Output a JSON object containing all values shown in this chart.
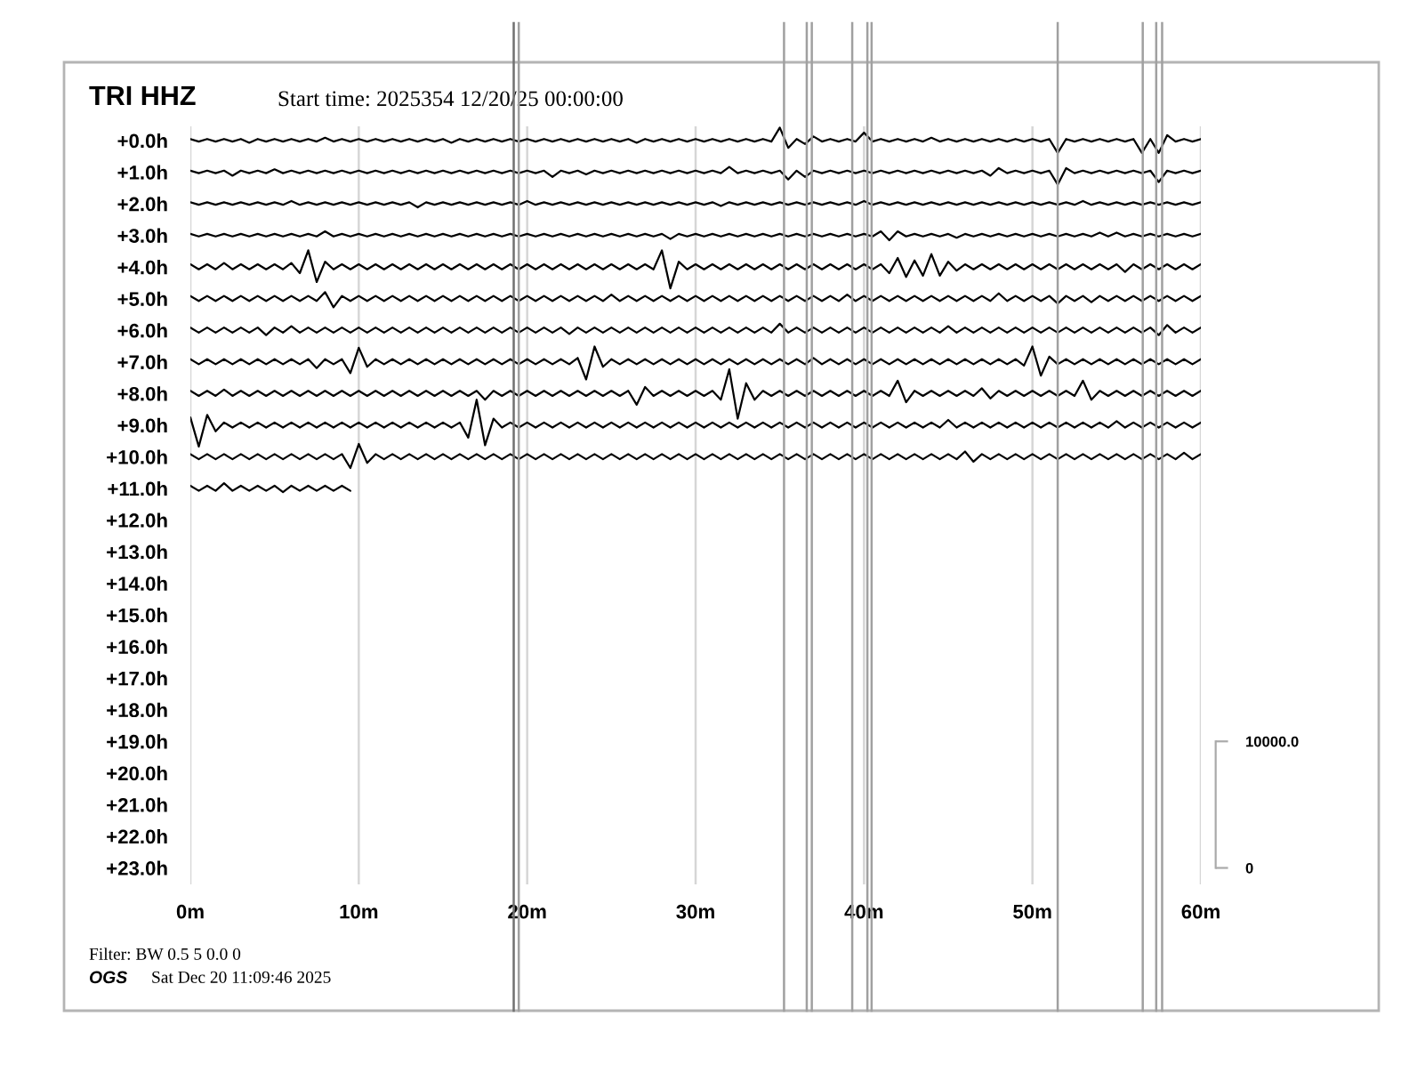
{
  "chart_data": {
    "type": "line",
    "title": "TRI HHZ",
    "subtitle": "Start time: 2025354 12/20/25 00:00:00",
    "annotations": [
      "Filter: BW 0.5 5 0.0 0",
      "OGS",
      "Sat Dec 20 11:09:46 2025"
    ],
    "xlim": [
      0,
      60
    ],
    "xticks": [
      {
        "value": 0,
        "label": "0m"
      },
      {
        "value": 10,
        "label": "10m"
      },
      {
        "value": 20,
        "label": "20m"
      },
      {
        "value": 30,
        "label": "30m"
      },
      {
        "value": 40,
        "label": "40m"
      },
      {
        "value": 50,
        "label": "50m"
      },
      {
        "value": 60,
        "label": "60m"
      }
    ],
    "ylim": [
      23.52,
      -0.45
    ],
    "yticks": [
      {
        "value": 0,
        "label": "+0.0h"
      },
      {
        "value": 1,
        "label": "+1.0h"
      },
      {
        "value": 2,
        "label": "+2.0h"
      },
      {
        "value": 3,
        "label": "+3.0h"
      },
      {
        "value": 4,
        "label": "+4.0h"
      },
      {
        "value": 5,
        "label": "+5.0h"
      },
      {
        "value": 6,
        "label": "+6.0h"
      },
      {
        "value": 7,
        "label": "+7.0h"
      },
      {
        "value": 8,
        "label": "+8.0h"
      },
      {
        "value": 9,
        "label": "+9.0h"
      },
      {
        "value": 10,
        "label": "+10.0h"
      },
      {
        "value": 11,
        "label": "+11.0h"
      },
      {
        "value": 12,
        "label": "+12.0h"
      },
      {
        "value": 13,
        "label": "+13.0h"
      },
      {
        "value": 14,
        "label": "+14.0h"
      },
      {
        "value": 15,
        "label": "+15.0h"
      },
      {
        "value": 16,
        "label": "+16.0h"
      },
      {
        "value": 17,
        "label": "+17.0h"
      },
      {
        "value": 18,
        "label": "+18.0h"
      },
      {
        "value": 19,
        "label": "+19.0h"
      },
      {
        "value": 20,
        "label": "+20.0h"
      },
      {
        "value": 21,
        "label": "+21.0h"
      },
      {
        "value": 22,
        "label": "+22.0h"
      },
      {
        "value": 23,
        "label": "+23.0h"
      }
    ],
    "y2lim": [
      -1300,
      58600
    ],
    "y2ticks": [
      0,
      {
        "value": 10000,
        "label": "10000.0"
      }
    ],
    "grid": "x",
    "ref_lines": [
      {
        "axis": "x",
        "value": 19.2,
        "color": "#707070"
      },
      {
        "axis": "x",
        "value": 19.5,
        "color": "#a0a0a0"
      },
      {
        "axis": "x",
        "value": 35.25,
        "color": "#a0a0a0"
      },
      {
        "axis": "x",
        "value": 36.6,
        "color": "#a0a0a0"
      },
      {
        "axis": "x",
        "value": 36.9,
        "color": "#a0a0a0"
      },
      {
        "axis": "x",
        "value": 39.3,
        "color": "#a0a0a0"
      },
      {
        "axis": "x",
        "value": 40.2,
        "color": "#a0a0a0"
      },
      {
        "axis": "x",
        "value": 40.45,
        "color": "#a0a0a0"
      },
      {
        "axis": "x",
        "value": 51.5,
        "color": "#a0a0a0"
      },
      {
        "axis": "x",
        "value": 56.55,
        "color": "#a0a0a0"
      },
      {
        "axis": "x",
        "value": 57.35,
        "color": "#a0a0a0"
      },
      {
        "axis": "x",
        "value": 57.7,
        "color": "#a0a0a0"
      }
    ],
    "x": [
      0,
      0.5,
      1,
      1.5,
      2,
      2.5,
      3,
      3.5,
      4,
      4.5,
      5,
      5.5,
      6,
      6.5,
      7,
      7.5,
      8,
      8.5,
      9,
      9.5,
      10,
      10.5,
      11,
      11.5,
      12,
      12.5,
      13,
      13.5,
      14,
      14.5,
      15,
      15.5,
      16,
      16.5,
      17,
      17.5,
      18,
      18.5,
      19,
      19.5,
      20,
      20.5,
      21,
      21.5,
      22,
      22.5,
      23,
      23.5,
      24,
      24.5,
      25,
      25.5,
      26,
      26.5,
      27,
      27.5,
      28,
      28.5,
      29,
      29.5,
      30,
      30.5,
      31,
      31.5,
      32,
      32.5,
      33,
      33.5,
      34,
      34.5,
      35,
      35.5,
      36,
      36.5,
      37,
      37.5,
      38,
      38.5,
      39,
      39.5,
      40,
      40.5,
      41,
      41.5,
      42,
      42.5,
      43,
      43.5,
      44,
      44.5,
      45,
      45.5,
      46,
      46.5,
      47,
      47.5,
      48,
      48.5,
      49,
      49.5,
      50,
      50.5,
      51,
      51.5,
      52,
      52.5,
      53,
      53.5,
      54,
      54.5,
      55,
      55.5,
      56,
      56.5,
      57,
      57.5,
      58,
      58.5,
      59,
      59.5,
      60
    ],
    "series": [
      {
        "color": "#000000",
        "axis": "y2",
        "values": [
          57600,
          57400,
          57600,
          57400,
          57600,
          57400,
          57600,
          57300,
          57600,
          57400,
          57600,
          57400,
          57600,
          57400,
          57600,
          57400,
          57700,
          57400,
          57600,
          57400,
          57600,
          57400,
          57600,
          57400,
          57600,
          57400,
          57600,
          57400,
          57600,
          57400,
          57600,
          57300,
          57600,
          57400,
          57600,
          57400,
          57600,
          57400,
          57600,
          57400,
          57600,
          57400,
          57600,
          57400,
          57600,
          57400,
          57600,
          57400,
          57600,
          57400,
          57600,
          57400,
          57600,
          57300,
          57600,
          57400,
          57600,
          57400,
          57600,
          57400,
          57600,
          57400,
          57600,
          57400,
          57600,
          57400,
          57600,
          57400,
          57600,
          57400,
          58500,
          56900,
          57600,
          57200,
          57800,
          57400,
          57600,
          57400,
          57600,
          57400,
          58100,
          57400,
          57600,
          57400,
          57600,
          57400,
          57600,
          57400,
          57700,
          57400,
          57600,
          57400,
          57600,
          57400,
          57600,
          57400,
          57600,
          57400,
          57600,
          57400,
          57600,
          57400,
          57600,
          56500,
          57600,
          57400,
          57600,
          57400,
          57600,
          57400,
          57600,
          57400,
          57600,
          56500,
          57600,
          56500,
          57900,
          57400,
          57600,
          57400,
          57600
        ]
      },
      {
        "color": "#000000",
        "axis": "y2",
        "values": [
          55100,
          54900,
          55100,
          54900,
          55100,
          54700,
          55100,
          54900,
          55100,
          54900,
          55200,
          54900,
          55100,
          54900,
          55100,
          54900,
          55100,
          54900,
          55100,
          54900,
          55100,
          54900,
          55100,
          54900,
          55100,
          54900,
          55100,
          54900,
          55100,
          54900,
          55100,
          54900,
          55100,
          54900,
          55100,
          54900,
          55100,
          54900,
          55100,
          54900,
          55100,
          54900,
          55100,
          54600,
          55100,
          54900,
          55100,
          54800,
          55100,
          54900,
          55100,
          54900,
          55100,
          54900,
          55100,
          54900,
          55100,
          54900,
          55100,
          54900,
          55100,
          54900,
          55100,
          54900,
          55400,
          54900,
          55100,
          54900,
          55100,
          54900,
          55100,
          54400,
          55100,
          54600,
          55100,
          54900,
          55100,
          54900,
          55100,
          54900,
          55100,
          54900,
          55100,
          54900,
          55100,
          54900,
          55100,
          54900,
          55100,
          54900,
          55100,
          54900,
          55100,
          54900,
          55100,
          54700,
          55300,
          54900,
          55100,
          54900,
          55100,
          54900,
          55100,
          54000,
          55300,
          54900,
          55100,
          54900,
          55100,
          54900,
          55100,
          54900,
          55100,
          54900,
          55100,
          54200,
          55100,
          54900,
          55100,
          54900,
          55100
        ]
      },
      {
        "color": "#000000",
        "axis": "y2",
        "values": [
          52600,
          52400,
          52600,
          52400,
          52600,
          52400,
          52600,
          52400,
          52600,
          52400,
          52600,
          52400,
          52700,
          52400,
          52600,
          52400,
          52600,
          52400,
          52600,
          52400,
          52600,
          52400,
          52600,
          52400,
          52600,
          52400,
          52600,
          52200,
          52600,
          52400,
          52600,
          52400,
          52600,
          52400,
          52600,
          52400,
          52600,
          52400,
          52600,
          52400,
          52700,
          52400,
          52600,
          52400,
          52600,
          52400,
          52600,
          52400,
          52600,
          52400,
          52600,
          52400,
          52600,
          52400,
          52600,
          52400,
          52600,
          52400,
          52600,
          52400,
          52600,
          52400,
          52600,
          52300,
          52600,
          52400,
          52600,
          52400,
          52600,
          52400,
          52600,
          52400,
          52600,
          52400,
          52600,
          52400,
          52600,
          52400,
          52600,
          52400,
          52700,
          52400,
          52600,
          52400,
          52600,
          52400,
          52600,
          52400,
          52600,
          52400,
          52600,
          52400,
          52600,
          52400,
          52600,
          52400,
          52600,
          52400,
          52600,
          52400,
          52600,
          52400,
          52600,
          52400,
          52600,
          52400,
          52700,
          52400,
          52600,
          52400,
          52600,
          52400,
          52600,
          52400,
          52600,
          52400,
          52600,
          52400,
          52600,
          52400,
          52600
        ]
      },
      {
        "color": "#000000",
        "axis": "y2",
        "values": [
          50100,
          49900,
          50100,
          49900,
          50100,
          49900,
          50100,
          49900,
          50100,
          49900,
          50100,
          49900,
          50100,
          49900,
          50100,
          49900,
          50300,
          49900,
          50100,
          49900,
          50100,
          49900,
          50100,
          49900,
          50100,
          49900,
          50100,
          49900,
          50100,
          49900,
          50100,
          49900,
          50100,
          49900,
          50100,
          49900,
          50100,
          49900,
          50100,
          49900,
          50100,
          49900,
          50100,
          49900,
          50100,
          49900,
          50100,
          49900,
          50100,
          49900,
          50100,
          49900,
          50100,
          49900,
          50100,
          49900,
          50100,
          49700,
          50100,
          49900,
          50100,
          49900,
          50100,
          49900,
          50100,
          49900,
          50100,
          49900,
          50100,
          49900,
          50100,
          49900,
          50100,
          49900,
          50100,
          49900,
          50100,
          49900,
          50100,
          49900,
          50100,
          49900,
          50300,
          49600,
          50300,
          49900,
          50100,
          49900,
          50100,
          49900,
          50100,
          49800,
          50100,
          49900,
          50100,
          49900,
          50100,
          49900,
          50100,
          49900,
          50100,
          49900,
          50100,
          49900,
          50100,
          49900,
          50100,
          49900,
          50200,
          49900,
          50200,
          49900,
          50100,
          49900,
          50100,
          49900,
          50100,
          49900,
          50100,
          49900,
          50100
        ]
      },
      {
        "color": "#000000",
        "axis": "y2",
        "values": [
          47700,
          47300,
          47700,
          47300,
          47800,
          47300,
          47700,
          47300,
          47700,
          47300,
          47700,
          47300,
          47800,
          47000,
          48800,
          46300,
          47900,
          47300,
          47700,
          47300,
          47700,
          47300,
          47700,
          47300,
          47700,
          47300,
          47700,
          47300,
          47700,
          47300,
          47700,
          47300,
          47700,
          47300,
          47700,
          47300,
          47700,
          47300,
          47700,
          47300,
          47700,
          47300,
          47700,
          47300,
          47700,
          47300,
          47700,
          47300,
          47700,
          47300,
          47700,
          47300,
          47700,
          47300,
          47700,
          47300,
          48800,
          45800,
          47900,
          47300,
          47700,
          47300,
          47700,
          47300,
          47700,
          47300,
          47700,
          47300,
          47700,
          47300,
          47700,
          47300,
          47700,
          47300,
          47700,
          47300,
          47700,
          47300,
          47700,
          47300,
          47700,
          47300,
          47700,
          47000,
          48200,
          46700,
          48000,
          46800,
          48500,
          46800,
          47900,
          47200,
          47700,
          47300,
          47700,
          47300,
          47700,
          47300,
          47700,
          47300,
          47700,
          47300,
          47700,
          47300,
          47700,
          47300,
          47700,
          47300,
          47700,
          47300,
          47700,
          47100,
          47700,
          47300,
          47700,
          47300,
          47700,
          47300,
          47700,
          47300,
          47700
        ]
      },
      {
        "color": "#000000",
        "axis": "y2",
        "values": [
          45200,
          44800,
          45200,
          44800,
          45200,
          44800,
          45200,
          44800,
          45200,
          44800,
          45200,
          44800,
          45200,
          44800,
          45200,
          44800,
          45500,
          44300,
          45200,
          44800,
          45200,
          44800,
          45200,
          44800,
          45200,
          44800,
          45200,
          44800,
          45200,
          44800,
          45200,
          44800,
          45200,
          44800,
          45200,
          44800,
          45200,
          44800,
          45200,
          44800,
          45200,
          44800,
          45200,
          44800,
          45200,
          44800,
          45200,
          44800,
          45200,
          44800,
          45300,
          44800,
          45200,
          44800,
          45200,
          44800,
          45200,
          44800,
          45200,
          44800,
          45200,
          44800,
          45200,
          44800,
          45200,
          44800,
          45200,
          44800,
          45200,
          44800,
          45200,
          44800,
          45200,
          44800,
          45200,
          44800,
          45200,
          44800,
          45300,
          44800,
          45200,
          44800,
          45200,
          44800,
          45200,
          44800,
          45200,
          44800,
          45200,
          44800,
          45200,
          44800,
          45200,
          44800,
          45200,
          44800,
          45400,
          44800,
          45200,
          44800,
          45200,
          44800,
          45200,
          44600,
          45200,
          44800,
          45200,
          44700,
          45200,
          44800,
          45200,
          44800,
          45200,
          44800,
          45200,
          44800,
          45200,
          44800,
          45200,
          44800,
          45200
        ]
      },
      {
        "color": "#000000",
        "axis": "y2",
        "values": [
          42700,
          42300,
          42700,
          42300,
          42700,
          42300,
          42700,
          42300,
          42700,
          42100,
          42700,
          42300,
          42800,
          42300,
          42700,
          42300,
          42700,
          42300,
          42700,
          42300,
          42700,
          42300,
          42700,
          42300,
          42700,
          42300,
          42700,
          42300,
          42700,
          42300,
          42700,
          42300,
          42700,
          42300,
          42700,
          42300,
          42700,
          42300,
          42700,
          42300,
          42700,
          42300,
          42700,
          42300,
          42700,
          42200,
          42700,
          42300,
          42700,
          42300,
          42700,
          42300,
          42700,
          42300,
          42700,
          42300,
          42700,
          42300,
          42700,
          42300,
          42700,
          42300,
          42700,
          42300,
          42700,
          42300,
          42700,
          42300,
          42700,
          42300,
          43000,
          42300,
          42700,
          42300,
          42700,
          42300,
          42700,
          42300,
          42700,
          42300,
          42700,
          42300,
          42700,
          42300,
          42700,
          42300,
          42700,
          42300,
          42700,
          42300,
          42800,
          42300,
          42700,
          42300,
          42700,
          42300,
          42700,
          42300,
          42700,
          42300,
          42700,
          42300,
          42700,
          42300,
          42700,
          42300,
          42700,
          42300,
          42700,
          42300,
          42700,
          42300,
          42700,
          42300,
          42700,
          42100,
          42900,
          42300,
          42700,
          42300,
          42700
        ]
      },
      {
        "color": "#000000",
        "axis": "y2",
        "values": [
          40200,
          39800,
          40200,
          39800,
          40200,
          39800,
          40200,
          39800,
          40200,
          39800,
          40200,
          39800,
          40200,
          39800,
          40200,
          39500,
          40200,
          39800,
          40200,
          39100,
          41100,
          39600,
          40200,
          39800,
          40200,
          39800,
          40200,
          39800,
          40200,
          39800,
          40200,
          39800,
          40200,
          39800,
          40200,
          39800,
          40200,
          39800,
          40200,
          39800,
          40200,
          39800,
          40200,
          39800,
          40200,
          39800,
          40300,
          38600,
          41200,
          39600,
          40200,
          39800,
          40200,
          39800,
          40200,
          39800,
          40200,
          39800,
          40200,
          39800,
          40200,
          39800,
          40200,
          39800,
          40200,
          39800,
          40200,
          39800,
          40200,
          39800,
          40200,
          39800,
          40200,
          39800,
          40300,
          39800,
          40200,
          39800,
          40200,
          39800,
          40200,
          39800,
          40200,
          39800,
          40200,
          39800,
          40200,
          39800,
          40200,
          39800,
          40200,
          39800,
          40200,
          39800,
          40200,
          39800,
          40200,
          39800,
          40200,
          39700,
          41200,
          38900,
          40400,
          39800,
          40200,
          39800,
          40200,
          39800,
          40200,
          39800,
          40200,
          39800,
          40200,
          39800,
          40200,
          39800,
          40200,
          39800,
          40200,
          39800,
          40200
        ]
      },
      {
        "color": "#000000",
        "axis": "y2",
        "values": [
          37700,
          37300,
          37700,
          37300,
          37800,
          37300,
          37700,
          37300,
          37700,
          37300,
          37700,
          37300,
          37700,
          37300,
          37700,
          37300,
          37700,
          37300,
          37700,
          37300,
          37700,
          37300,
          37700,
          37300,
          37700,
          37300,
          37700,
          37300,
          37700,
          37300,
          37700,
          37300,
          37700,
          37300,
          37700,
          37000,
          37700,
          37300,
          37700,
          37300,
          37700,
          37300,
          37700,
          37300,
          37700,
          37300,
          37700,
          37300,
          37700,
          37300,
          37700,
          37300,
          37700,
          36600,
          38000,
          37300,
          37700,
          37300,
          37700,
          37300,
          37700,
          37300,
          37700,
          37000,
          39400,
          35500,
          38300,
          37000,
          37700,
          37300,
          37700,
          37300,
          37700,
          37300,
          37700,
          37300,
          37700,
          37300,
          37700,
          37300,
          37700,
          37300,
          37700,
          37300,
          38500,
          36800,
          37700,
          37300,
          37700,
          37300,
          37700,
          37300,
          37700,
          37300,
          37900,
          37100,
          37700,
          37300,
          37700,
          37300,
          37700,
          37300,
          37700,
          37300,
          37700,
          37300,
          38500,
          37000,
          37700,
          37300,
          37700,
          37300,
          37700,
          37300,
          37700,
          37300,
          37700,
          37300,
          37700,
          37300,
          37700
        ]
      },
      {
        "color": "#000000",
        "axis": "y2",
        "values": [
          35600,
          33300,
          35800,
          34500,
          35200,
          34800,
          35200,
          34800,
          35200,
          34800,
          35200,
          34800,
          35200,
          34800,
          35200,
          34800,
          35200,
          34800,
          35200,
          34800,
          35200,
          34800,
          35200,
          34800,
          35200,
          34800,
          35200,
          34800,
          35200,
          34800,
          35200,
          34800,
          35200,
          34000,
          37000,
          33400,
          35500,
          34800,
          35200,
          34800,
          35200,
          34800,
          35200,
          34800,
          35200,
          34800,
          35200,
          34800,
          35200,
          34800,
          35200,
          34800,
          35200,
          34800,
          35200,
          34800,
          35200,
          34800,
          35200,
          34800,
          35200,
          34800,
          35200,
          34800,
          35200,
          34800,
          35200,
          34800,
          35200,
          34800,
          35200,
          34800,
          35200,
          34800,
          35200,
          34800,
          35200,
          34800,
          35200,
          34800,
          35200,
          34800,
          35200,
          34800,
          35200,
          34800,
          35200,
          34800,
          35200,
          34800,
          35400,
          34800,
          35200,
          34800,
          35200,
          34800,
          35200,
          34800,
          35200,
          34800,
          35200,
          34800,
          35200,
          34800,
          35200,
          34800,
          35200,
          34800,
          35200,
          34800,
          35300,
          34800,
          35200,
          34800,
          35200,
          34800,
          35200,
          34800,
          35200,
          34800,
          35200
        ]
      },
      {
        "color": "#000000",
        "axis": "y2",
        "values": [
          32700,
          32300,
          32700,
          32300,
          32700,
          32300,
          32700,
          32300,
          32700,
          32300,
          32700,
          32300,
          32700,
          32300,
          32700,
          32300,
          32700,
          32300,
          32700,
          31600,
          33500,
          32000,
          32700,
          32300,
          32700,
          32300,
          32700,
          32300,
          32700,
          32300,
          32700,
          32300,
          32700,
          32300,
          32700,
          32300,
          32700,
          32300,
          32700,
          32300,
          32700,
          32300,
          32700,
          32300,
          32700,
          32300,
          32700,
          32300,
          32700,
          32300,
          32700,
          32300,
          32700,
          32300,
          32700,
          32300,
          32700,
          32300,
          32700,
          32300,
          32700,
          32300,
          32700,
          32300,
          32700,
          32300,
          32700,
          32300,
          32700,
          32300,
          32700,
          32300,
          32700,
          32300,
          32700,
          32300,
          32700,
          32300,
          32700,
          32300,
          32700,
          32300,
          32700,
          32300,
          32700,
          32300,
          32700,
          32300,
          32700,
          32300,
          32700,
          32300,
          32900,
          32100,
          32700,
          32300,
          32700,
          32300,
          32700,
          32300,
          32700,
          32300,
          32700,
          32300,
          32700,
          32300,
          32700,
          32300,
          32700,
          32300,
          32700,
          32300,
          32700,
          32300,
          32700,
          32300,
          32700,
          32300,
          32800,
          32300,
          32700
        ]
      },
      {
        "color": "#000000",
        "axis": "y2",
        "x": [
          0,
          0.5,
          1,
          1.5,
          2,
          2.5,
          3,
          3.5,
          4,
          4.5,
          5,
          5.5,
          6,
          6.5,
          7,
          7.5,
          8,
          8.5,
          9,
          9.5
        ],
        "values": [
          30200,
          29800,
          30200,
          29800,
          30400,
          29800,
          30200,
          29800,
          30200,
          29800,
          30200,
          29700,
          30200,
          29800,
          30200,
          29800,
          30200,
          29800,
          30200,
          29800
        ]
      }
    ]
  }
}
